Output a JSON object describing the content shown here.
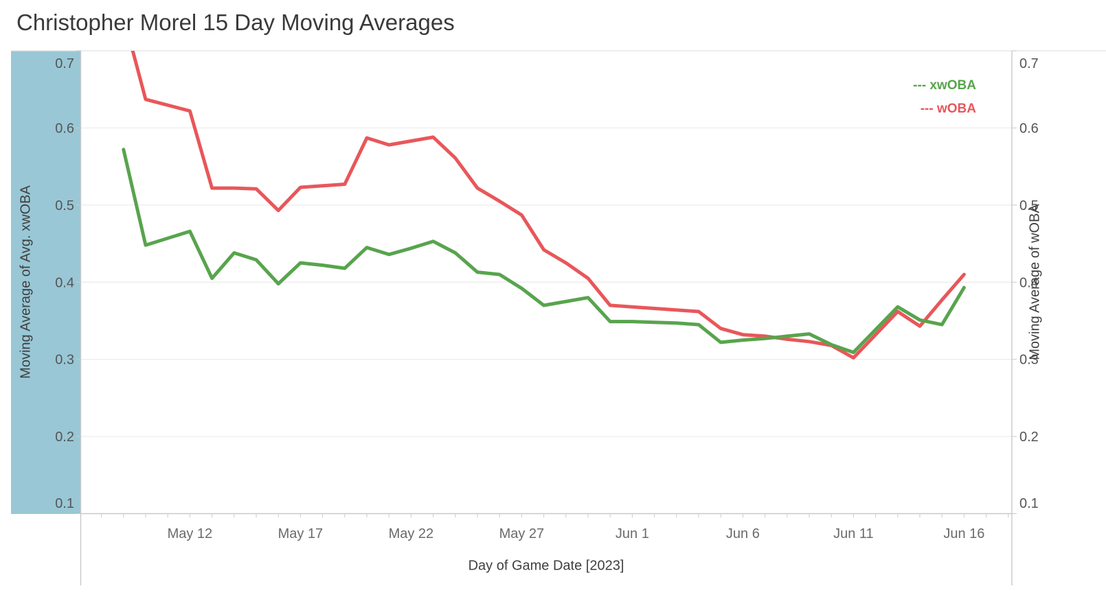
{
  "title": "Christopher Morel 15 Day Moving Averages",
  "axes": {
    "left": {
      "title": "Moving Average of Avg. xwOBA",
      "tick_labels": [
        "0.1",
        "0.2",
        "0.3",
        "0.4",
        "0.5",
        "0.6",
        "0.7"
      ],
      "band_color": "#99c7d6"
    },
    "right": {
      "title": "Moving Average of wOBA",
      "tick_labels": [
        "0.1",
        "0.2",
        "0.3",
        "0.4",
        "0.5",
        "0.6",
        "0.7"
      ]
    },
    "bottom": {
      "title": "Day of Game Date [2023]"
    }
  },
  "legend": {
    "items": [
      {
        "swatch": "---",
        "label": "xwOBA",
        "color": "#58a44d"
      },
      {
        "swatch": "---",
        "label": "wOBA",
        "color": "#e8575a"
      }
    ]
  },
  "colors": {
    "left_axis_band": "#99c7d6",
    "xwoba_line": "#58a44d",
    "woba_line": "#e8575a",
    "gridline": "#eeeeee",
    "axis_line": "#c9c9c9",
    "top_border": "#e2e2e2",
    "tick_label": "#555555",
    "x_tick_label": "#6a6a6a"
  },
  "chart_data": {
    "type": "line",
    "title": "Christopher Morel 15 Day Moving Averages",
    "xlabel": "Day of Game Date [2023]",
    "ylabel_left": "Moving Average of Avg. xwOBA",
    "ylabel_right": "Moving Average of wOBA",
    "ylim": [
      0.1,
      0.7
    ],
    "y_ticks": [
      0.1,
      0.2,
      0.3,
      0.4,
      0.5,
      0.6,
      0.7
    ],
    "grid": "horizontal",
    "legend_position": "top-right-inside",
    "x_tick_labels": [
      {
        "label": "May 12",
        "day": 3
      },
      {
        "label": "May 17",
        "day": 8
      },
      {
        "label": "May 22",
        "day": 13
      },
      {
        "label": "May 27",
        "day": 18
      },
      {
        "label": "Jun 1",
        "day": 23
      },
      {
        "label": "Jun 6",
        "day": 28
      },
      {
        "label": "Jun 11",
        "day": 33
      },
      {
        "label": "Jun 16",
        "day": 38
      }
    ],
    "series": [
      {
        "name": "xwOBA",
        "key": "xwOBA",
        "color": "#58a44d",
        "legend_swatch": "---"
      },
      {
        "name": "wOBA",
        "key": "wOBA",
        "color": "#e8575a",
        "legend_swatch": "---"
      }
    ],
    "points": [
      {
        "date": "May 9",
        "day": 0,
        "xwOBA": 0.572,
        "wOBA": 0.745
      },
      {
        "date": "May 10",
        "day": 1,
        "xwOBA": 0.448,
        "wOBA": 0.637
      },
      {
        "date": "May 12",
        "day": 3,
        "xwOBA": 0.466,
        "wOBA": 0.622
      },
      {
        "date": "May 13",
        "day": 4,
        "xwOBA": 0.405,
        "wOBA": 0.522
      },
      {
        "date": "May 14",
        "day": 5,
        "xwOBA": 0.438,
        "wOBA": 0.522
      },
      {
        "date": "May 15",
        "day": 6,
        "xwOBA": 0.429,
        "wOBA": 0.521
      },
      {
        "date": "May 16",
        "day": 7,
        "xwOBA": 0.398,
        "wOBA": 0.493
      },
      {
        "date": "May 17",
        "day": 8,
        "xwOBA": 0.425,
        "wOBA": 0.523
      },
      {
        "date": "May 18",
        "day": 9,
        "xwOBA": 0.422,
        "wOBA": 0.525
      },
      {
        "date": "May 19",
        "day": 10,
        "xwOBA": 0.418,
        "wOBA": 0.527
      },
      {
        "date": "May 20",
        "day": 11,
        "xwOBA": 0.445,
        "wOBA": 0.587
      },
      {
        "date": "May 21",
        "day": 12,
        "xwOBA": 0.436,
        "wOBA": 0.578
      },
      {
        "date": "May 22",
        "day": 13,
        "xwOBA": 0.444,
        "wOBA": 0.583
      },
      {
        "date": "May 23",
        "day": 14,
        "xwOBA": 0.453,
        "wOBA": 0.588
      },
      {
        "date": "May 24",
        "day": 15,
        "xwOBA": 0.438,
        "wOBA": 0.561
      },
      {
        "date": "May 25",
        "day": 16,
        "xwOBA": 0.413,
        "wOBA": 0.522
      },
      {
        "date": "May 26",
        "day": 17,
        "xwOBA": 0.41,
        "wOBA": 0.505
      },
      {
        "date": "May 27",
        "day": 18,
        "xwOBA": 0.392,
        "wOBA": 0.487
      },
      {
        "date": "May 28",
        "day": 19,
        "xwOBA": 0.37,
        "wOBA": 0.442
      },
      {
        "date": "May 29",
        "day": 20,
        "xwOBA": 0.375,
        "wOBA": 0.425
      },
      {
        "date": "May 30",
        "day": 21,
        "xwOBA": 0.38,
        "wOBA": 0.405
      },
      {
        "date": "May 31",
        "day": 22,
        "xwOBA": 0.349,
        "wOBA": 0.37
      },
      {
        "date": "Jun 1",
        "day": 23,
        "xwOBA": 0.349,
        "wOBA": 0.368
      },
      {
        "date": "Jun 2",
        "day": 24,
        "xwOBA": 0.348,
        "wOBA": 0.366
      },
      {
        "date": "Jun 3",
        "day": 25,
        "xwOBA": 0.347,
        "wOBA": 0.364
      },
      {
        "date": "Jun 4",
        "day": 26,
        "xwOBA": 0.345,
        "wOBA": 0.362
      },
      {
        "date": "Jun 5",
        "day": 27,
        "xwOBA": 0.322,
        "wOBA": 0.34
      },
      {
        "date": "Jun 6",
        "day": 28,
        "xwOBA": 0.325,
        "wOBA": 0.332
      },
      {
        "date": "Jun 7",
        "day": 29,
        "xwOBA": 0.327,
        "wOBA": 0.33
      },
      {
        "date": "Jun 8",
        "day": 30,
        "xwOBA": 0.33,
        "wOBA": 0.326
      },
      {
        "date": "Jun 9",
        "day": 31,
        "xwOBA": 0.333,
        "wOBA": 0.323
      },
      {
        "date": "Jun 10",
        "day": 32,
        "xwOBA": 0.319,
        "wOBA": 0.318
      },
      {
        "date": "Jun 11",
        "day": 33,
        "xwOBA": 0.309,
        "wOBA": 0.302
      },
      {
        "date": "Jun 13",
        "day": 35,
        "xwOBA": 0.368,
        "wOBA": 0.362
      },
      {
        "date": "Jun 14",
        "day": 36,
        "xwOBA": 0.351,
        "wOBA": 0.343
      },
      {
        "date": "Jun 15",
        "day": 37,
        "xwOBA": 0.345,
        "wOBA": 0.377
      },
      {
        "date": "Jun 16",
        "day": 38,
        "xwOBA": 0.393,
        "wOBA": 0.41
      }
    ]
  }
}
